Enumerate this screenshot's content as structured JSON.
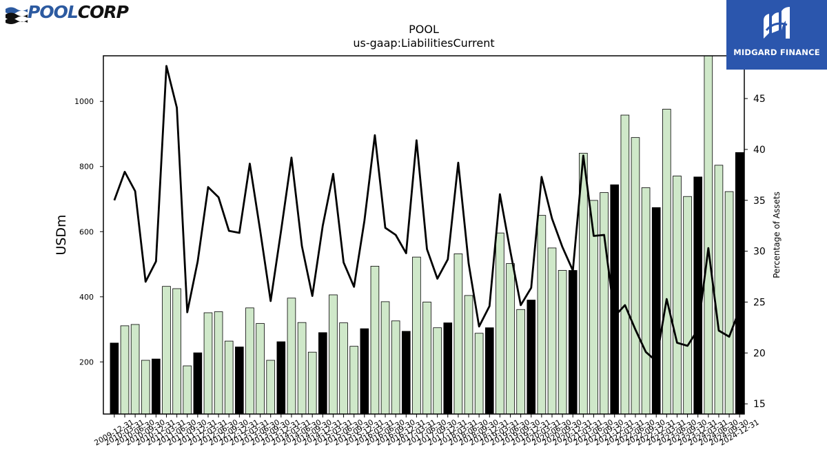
{
  "header": {
    "left_logo": {
      "text_a": "POOL",
      "text_b": "CORP",
      "icon": "poolcorp-wave-logo-icon"
    },
    "right_logo": {
      "text": "MIDGARD FINANCE",
      "icon": "midgard-finance-logo-icon",
      "bg_color": "#2b56ad"
    }
  },
  "chart_data": {
    "type": "bar",
    "title": "POOL",
    "subtitle": "us-gaap:LiabilitiesCurrent",
    "ylabel": "USDm",
    "y2label": "Percentage of Assets",
    "ylim": [
      40,
      1140
    ],
    "y2lim": [
      14,
      49.2
    ],
    "yticks": [
      200,
      400,
      600,
      800,
      1000
    ],
    "y2ticks": [
      15,
      20,
      25,
      30,
      35,
      40,
      45
    ],
    "colors": {
      "annual_bar": "#000000",
      "quarter_bar": "#cfe8c9",
      "line": "#000000"
    },
    "categories": [
      "2009-12-31",
      "2010-03-31",
      "2010-06-30",
      "2010-09-30",
      "2010-12-31",
      "2011-03-31",
      "2011-06-30",
      "2011-09-30",
      "2011-12-31",
      "2012-03-31",
      "2012-06-30",
      "2012-09-30",
      "2012-12-31",
      "2013-03-31",
      "2013-06-30",
      "2013-09-30",
      "2013-12-31",
      "2014-03-31",
      "2014-06-30",
      "2014-09-30",
      "2014-12-31",
      "2015-03-31",
      "2015-06-30",
      "2015-09-30",
      "2015-12-31",
      "2016-03-31",
      "2016-06-30",
      "2016-09-30",
      "2016-12-31",
      "2017-03-31",
      "2017-06-30",
      "2017-09-30",
      "2017-12-31",
      "2018-03-31",
      "2018-06-30",
      "2018-09-30",
      "2018-12-31",
      "2019-03-31",
      "2019-06-30",
      "2019-09-30",
      "2019-12-31",
      "2020-03-31",
      "2020-06-30",
      "2020-09-30",
      "2020-12-31",
      "2021-03-31",
      "2021-06-30",
      "2021-09-30",
      "2021-12-31",
      "2022-03-31",
      "2022-06-30",
      "2022-09-30",
      "2022-12-31",
      "2023-03-31",
      "2023-06-30",
      "2023-09-30",
      "2023-12-31",
      "2024-03-31",
      "2024-06-30",
      "2024-09-30",
      "2024-12-31"
    ],
    "series": [
      {
        "type": "bar",
        "values": [
          258,
          311,
          315,
          205,
          209,
          432,
          425,
          188,
          228,
          351,
          354,
          264,
          246,
          366,
          318,
          205,
          262,
          396,
          321,
          230,
          290,
          406,
          320,
          248,
          302,
          494,
          385,
          326,
          294,
          522,
          384,
          305,
          320,
          532,
          404,
          288,
          305,
          596,
          502,
          361,
          390,
          650,
          550,
          481,
          481,
          841,
          696,
          720,
          744,
          958,
          889,
          735,
          674,
          976,
          771,
          708,
          768,
          1140,
          804,
          723,
          843
        ]
      },
      {
        "type": "line",
        "axis": "right",
        "values": [
          35.0,
          37.8,
          35.9,
          27.0,
          29.0,
          48.2,
          44.1,
          24.0,
          29.0,
          36.3,
          35.3,
          32.0,
          31.8,
          38.6,
          32.0,
          25.1,
          32.0,
          39.2,
          30.5,
          25.6,
          32.5,
          37.6,
          28.9,
          26.5,
          33.0,
          41.4,
          32.3,
          31.6,
          29.8,
          40.9,
          30.2,
          27.3,
          29.2,
          38.7,
          28.8,
          22.6,
          24.6,
          35.6,
          30.0,
          24.7,
          26.4,
          37.3,
          33.2,
          30.4,
          28.1,
          39.4,
          31.5,
          31.6,
          23.6,
          24.7,
          22.3,
          20.1,
          19.2,
          25.3,
          21.0,
          20.7,
          22.3,
          30.3,
          22.2,
          21.6,
          24.3
        ]
      }
    ]
  }
}
